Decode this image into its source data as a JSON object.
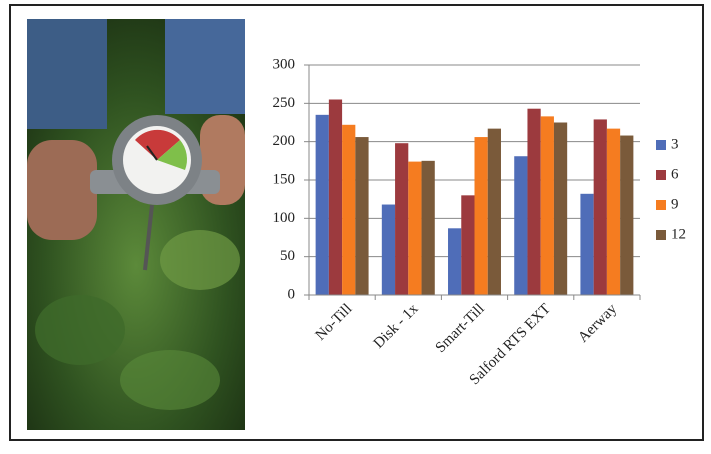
{
  "chart_data": {
    "type": "bar",
    "categories": [
      "No-Till",
      "Disk - 1x",
      "Smart-Till",
      "Salford RTS EXT",
      "Aerway"
    ],
    "series": [
      {
        "name": "3",
        "color": "#4f6db8",
        "values": [
          235,
          118,
          87,
          181,
          132
        ]
      },
      {
        "name": "6",
        "color": "#9c3a3e",
        "values": [
          255,
          198,
          130,
          243,
          229
        ]
      },
      {
        "name": "9",
        "color": "#f57c20",
        "values": [
          222,
          174,
          206,
          233,
          217
        ]
      },
      {
        "name": "12",
        "color": "#7a5a3a",
        "values": [
          206,
          175,
          217,
          225,
          208
        ]
      }
    ],
    "ylim": [
      0,
      300
    ],
    "yticks": [
      0,
      50,
      100,
      150,
      200,
      250,
      300
    ],
    "grid": true,
    "legend": "right"
  }
}
